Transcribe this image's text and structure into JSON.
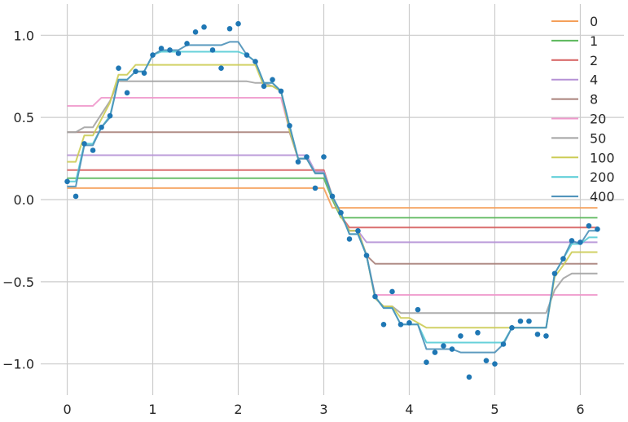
{
  "chart_data": {
    "type": "line",
    "title": "",
    "xlabel": "",
    "ylabel": "",
    "xlim": [
      -0.31,
      6.51
    ],
    "ylim": [
      -1.19,
      1.19
    ],
    "xticks": [
      0,
      1,
      2,
      3,
      4,
      5,
      6
    ],
    "yticks": [
      -1.0,
      -0.5,
      0.0,
      0.5,
      1.0
    ],
    "xtick_labels": [
      "0",
      "1",
      "2",
      "3",
      "4",
      "5",
      "6"
    ],
    "ytick_labels": [
      "−1.0",
      "−0.5",
      "0.0",
      "0.5",
      "1.0"
    ],
    "grid": true,
    "legend_position": "top-right",
    "x": [
      0.0,
      0.1,
      0.2,
      0.3,
      0.4,
      0.5,
      0.6,
      0.7,
      0.8,
      0.9,
      1.0,
      1.1,
      1.2,
      1.3,
      1.4,
      1.5,
      1.6,
      1.7,
      1.8,
      1.9,
      2.0,
      2.1,
      2.2,
      2.3,
      2.4,
      2.5,
      2.6,
      2.7,
      2.8,
      2.9,
      3.0,
      3.1,
      3.2,
      3.3,
      3.4,
      3.5,
      3.6,
      3.7,
      3.8,
      3.9,
      4.0,
      4.1,
      4.2,
      4.3,
      4.4,
      4.5,
      4.6,
      4.7,
      4.8,
      4.9,
      5.0,
      5.1,
      5.2,
      5.3,
      5.4,
      5.5,
      5.6,
      5.7,
      5.8,
      5.9,
      6.0,
      6.1,
      6.2
    ],
    "scatter": {
      "color": "#1f77b4",
      "values": [
        0.11,
        0.02,
        0.34,
        0.3,
        0.44,
        0.51,
        0.8,
        0.65,
        0.78,
        0.77,
        0.88,
        0.92,
        0.91,
        0.89,
        0.95,
        1.02,
        1.05,
        0.91,
        0.8,
        1.04,
        1.07,
        0.88,
        0.84,
        0.69,
        0.73,
        0.66,
        0.45,
        0.23,
        0.26,
        0.07,
        0.26,
        0.02,
        -0.08,
        -0.24,
        -0.19,
        -0.34,
        -0.59,
        -0.76,
        -0.56,
        -0.76,
        -0.75,
        -0.67,
        -0.99,
        -0.93,
        -0.89,
        -0.91,
        -0.83,
        -1.08,
        -0.81,
        -0.98,
        -1.0,
        -0.88,
        -0.78,
        -0.74,
        -0.74,
        -0.82,
        -0.83,
        -0.45,
        -0.36,
        -0.25,
        -0.26,
        -0.16,
        -0.18
      ]
    },
    "series": [
      {
        "name": "0",
        "color": "#f5a05a",
        "values": [
          0.07,
          0.07,
          0.07,
          0.07,
          0.07,
          0.07,
          0.07,
          0.07,
          0.07,
          0.07,
          0.07,
          0.07,
          0.07,
          0.07,
          0.07,
          0.07,
          0.07,
          0.07,
          0.07,
          0.07,
          0.07,
          0.07,
          0.07,
          0.07,
          0.07,
          0.07,
          0.07,
          0.07,
          0.07,
          0.07,
          0.07,
          -0.05,
          -0.05,
          -0.05,
          -0.05,
          -0.05,
          -0.05,
          -0.05,
          -0.05,
          -0.05,
          -0.05,
          -0.05,
          -0.05,
          -0.05,
          -0.05,
          -0.05,
          -0.05,
          -0.05,
          -0.05,
          -0.05,
          -0.05,
          -0.05,
          -0.05,
          -0.05,
          -0.05,
          -0.05,
          -0.05,
          -0.05,
          -0.05,
          -0.05,
          -0.05,
          -0.05,
          -0.05
        ]
      },
      {
        "name": "1",
        "color": "#5cb85c",
        "values": [
          0.13,
          0.13,
          0.13,
          0.13,
          0.13,
          0.13,
          0.13,
          0.13,
          0.13,
          0.13,
          0.13,
          0.13,
          0.13,
          0.13,
          0.13,
          0.13,
          0.13,
          0.13,
          0.13,
          0.13,
          0.13,
          0.13,
          0.13,
          0.13,
          0.13,
          0.13,
          0.13,
          0.13,
          0.13,
          0.13,
          0.13,
          0.0,
          -0.11,
          -0.11,
          -0.11,
          -0.11,
          -0.11,
          -0.11,
          -0.11,
          -0.11,
          -0.11,
          -0.11,
          -0.11,
          -0.11,
          -0.11,
          -0.11,
          -0.11,
          -0.11,
          -0.11,
          -0.11,
          -0.11,
          -0.11,
          -0.11,
          -0.11,
          -0.11,
          -0.11,
          -0.11,
          -0.11,
          -0.11,
          -0.11,
          -0.11,
          -0.11,
          -0.11
        ]
      },
      {
        "name": "2",
        "color": "#d65f5f",
        "values": [
          0.18,
          0.18,
          0.18,
          0.18,
          0.18,
          0.18,
          0.18,
          0.18,
          0.18,
          0.18,
          0.18,
          0.18,
          0.18,
          0.18,
          0.18,
          0.18,
          0.18,
          0.18,
          0.18,
          0.18,
          0.18,
          0.18,
          0.18,
          0.18,
          0.18,
          0.18,
          0.18,
          0.18,
          0.18,
          0.18,
          0.18,
          0.02,
          -0.1,
          -0.17,
          -0.17,
          -0.17,
          -0.17,
          -0.17,
          -0.17,
          -0.17,
          -0.17,
          -0.17,
          -0.17,
          -0.17,
          -0.17,
          -0.17,
          -0.17,
          -0.17,
          -0.17,
          -0.17,
          -0.17,
          -0.17,
          -0.17,
          -0.17,
          -0.17,
          -0.17,
          -0.17,
          -0.17,
          -0.17,
          -0.17,
          -0.17,
          -0.17,
          -0.17
        ]
      },
      {
        "name": "4",
        "color": "#b591d6",
        "values": [
          0.27,
          0.27,
          0.27,
          0.27,
          0.27,
          0.27,
          0.27,
          0.27,
          0.27,
          0.27,
          0.27,
          0.27,
          0.27,
          0.27,
          0.27,
          0.27,
          0.27,
          0.27,
          0.27,
          0.27,
          0.27,
          0.27,
          0.27,
          0.27,
          0.27,
          0.27,
          0.27,
          0.27,
          0.27,
          0.17,
          0.17,
          0.02,
          -0.1,
          -0.19,
          -0.19,
          -0.26,
          -0.26,
          -0.26,
          -0.26,
          -0.26,
          -0.26,
          -0.26,
          -0.26,
          -0.26,
          -0.26,
          -0.26,
          -0.26,
          -0.26,
          -0.26,
          -0.26,
          -0.26,
          -0.26,
          -0.26,
          -0.26,
          -0.26,
          -0.26,
          -0.26,
          -0.26,
          -0.26,
          -0.26,
          -0.26,
          -0.26,
          -0.26
        ]
      },
      {
        "name": "8",
        "color": "#a9817a",
        "values": [
          0.41,
          0.41,
          0.41,
          0.41,
          0.41,
          0.41,
          0.41,
          0.41,
          0.41,
          0.41,
          0.41,
          0.41,
          0.41,
          0.41,
          0.41,
          0.41,
          0.41,
          0.41,
          0.41,
          0.41,
          0.41,
          0.41,
          0.41,
          0.41,
          0.41,
          0.41,
          0.41,
          0.25,
          0.25,
          0.16,
          0.16,
          0.02,
          -0.1,
          -0.19,
          -0.19,
          -0.34,
          -0.39,
          -0.39,
          -0.39,
          -0.39,
          -0.39,
          -0.39,
          -0.39,
          -0.39,
          -0.39,
          -0.39,
          -0.39,
          -0.39,
          -0.39,
          -0.39,
          -0.39,
          -0.39,
          -0.39,
          -0.39,
          -0.39,
          -0.39,
          -0.39,
          -0.39,
          -0.39,
          -0.39,
          -0.39,
          -0.39,
          -0.39
        ]
      },
      {
        "name": "20",
        "color": "#ef99cc",
        "values": [
          0.57,
          0.57,
          0.57,
          0.57,
          0.62,
          0.62,
          0.62,
          0.62,
          0.62,
          0.62,
          0.62,
          0.62,
          0.62,
          0.62,
          0.62,
          0.62,
          0.62,
          0.62,
          0.62,
          0.62,
          0.62,
          0.62,
          0.62,
          0.62,
          0.62,
          0.62,
          0.42,
          0.25,
          0.25,
          0.16,
          0.16,
          0.02,
          -0.1,
          -0.19,
          -0.19,
          -0.34,
          -0.58,
          -0.58,
          -0.58,
          -0.58,
          -0.58,
          -0.58,
          -0.58,
          -0.58,
          -0.58,
          -0.58,
          -0.58,
          -0.58,
          -0.58,
          -0.58,
          -0.58,
          -0.58,
          -0.58,
          -0.58,
          -0.58,
          -0.58,
          -0.58,
          -0.58,
          -0.58,
          -0.58,
          -0.58,
          -0.58,
          -0.58
        ]
      },
      {
        "name": "50",
        "color": "#a3a3a3",
        "values": [
          0.41,
          0.41,
          0.44,
          0.44,
          0.52,
          0.6,
          0.72,
          0.72,
          0.72,
          0.72,
          0.72,
          0.72,
          0.72,
          0.72,
          0.72,
          0.72,
          0.72,
          0.72,
          0.72,
          0.72,
          0.72,
          0.72,
          0.71,
          0.71,
          0.69,
          0.66,
          0.42,
          0.25,
          0.25,
          0.16,
          0.16,
          0.02,
          -0.1,
          -0.19,
          -0.19,
          -0.34,
          -0.6,
          -0.65,
          -0.65,
          -0.69,
          -0.69,
          -0.69,
          -0.69,
          -0.69,
          -0.69,
          -0.69,
          -0.69,
          -0.69,
          -0.69,
          -0.69,
          -0.69,
          -0.69,
          -0.69,
          -0.69,
          -0.69,
          -0.69,
          -0.69,
          -0.55,
          -0.48,
          -0.45,
          -0.45,
          -0.45,
          -0.45
        ]
      },
      {
        "name": "100",
        "color": "#cccc55",
        "values": [
          0.23,
          0.23,
          0.39,
          0.39,
          0.49,
          0.59,
          0.76,
          0.76,
          0.82,
          0.82,
          0.82,
          0.82,
          0.82,
          0.82,
          0.82,
          0.82,
          0.82,
          0.82,
          0.82,
          0.82,
          0.82,
          0.82,
          0.82,
          0.69,
          0.69,
          0.66,
          0.42,
          0.25,
          0.25,
          0.16,
          0.16,
          0.02,
          -0.1,
          -0.19,
          -0.19,
          -0.34,
          -0.6,
          -0.65,
          -0.65,
          -0.72,
          -0.72,
          -0.75,
          -0.78,
          -0.78,
          -0.78,
          -0.78,
          -0.78,
          -0.78,
          -0.78,
          -0.78,
          -0.78,
          -0.78,
          -0.78,
          -0.78,
          -0.78,
          -0.78,
          -0.78,
          -0.47,
          -0.4,
          -0.32,
          -0.32,
          -0.32,
          -0.32
        ]
      },
      {
        "name": "200",
        "color": "#55ccd6",
        "values": [
          0.11,
          0.11,
          0.34,
          0.34,
          0.44,
          0.51,
          0.73,
          0.73,
          0.78,
          0.78,
          0.88,
          0.9,
          0.9,
          0.9,
          0.9,
          0.9,
          0.9,
          0.9,
          0.9,
          0.9,
          0.9,
          0.88,
          0.84,
          0.71,
          0.71,
          0.66,
          0.45,
          0.25,
          0.25,
          0.16,
          0.16,
          0.02,
          -0.08,
          -0.21,
          -0.21,
          -0.34,
          -0.59,
          -0.66,
          -0.66,
          -0.76,
          -0.76,
          -0.76,
          -0.87,
          -0.87,
          -0.87,
          -0.87,
          -0.87,
          -0.87,
          -0.87,
          -0.87,
          -0.87,
          -0.87,
          -0.78,
          -0.78,
          -0.78,
          -0.78,
          -0.78,
          -0.45,
          -0.36,
          -0.27,
          -0.27,
          -0.23,
          -0.23
        ]
      },
      {
        "name": "400",
        "color": "#4a90b8",
        "values": [
          0.08,
          0.08,
          0.33,
          0.33,
          0.44,
          0.5,
          0.73,
          0.73,
          0.78,
          0.78,
          0.88,
          0.91,
          0.91,
          0.91,
          0.94,
          0.94,
          0.94,
          0.94,
          0.94,
          0.96,
          0.96,
          0.88,
          0.84,
          0.71,
          0.71,
          0.66,
          0.45,
          0.25,
          0.25,
          0.16,
          0.16,
          0.02,
          -0.08,
          -0.21,
          -0.21,
          -0.34,
          -0.59,
          -0.66,
          -0.66,
          -0.76,
          -0.76,
          -0.76,
          -0.91,
          -0.91,
          -0.91,
          -0.91,
          -0.93,
          -0.93,
          -0.93,
          -0.93,
          -0.93,
          -0.88,
          -0.78,
          -0.78,
          -0.78,
          -0.78,
          -0.78,
          -0.45,
          -0.36,
          -0.25,
          -0.27,
          -0.19,
          -0.19
        ]
      }
    ]
  }
}
